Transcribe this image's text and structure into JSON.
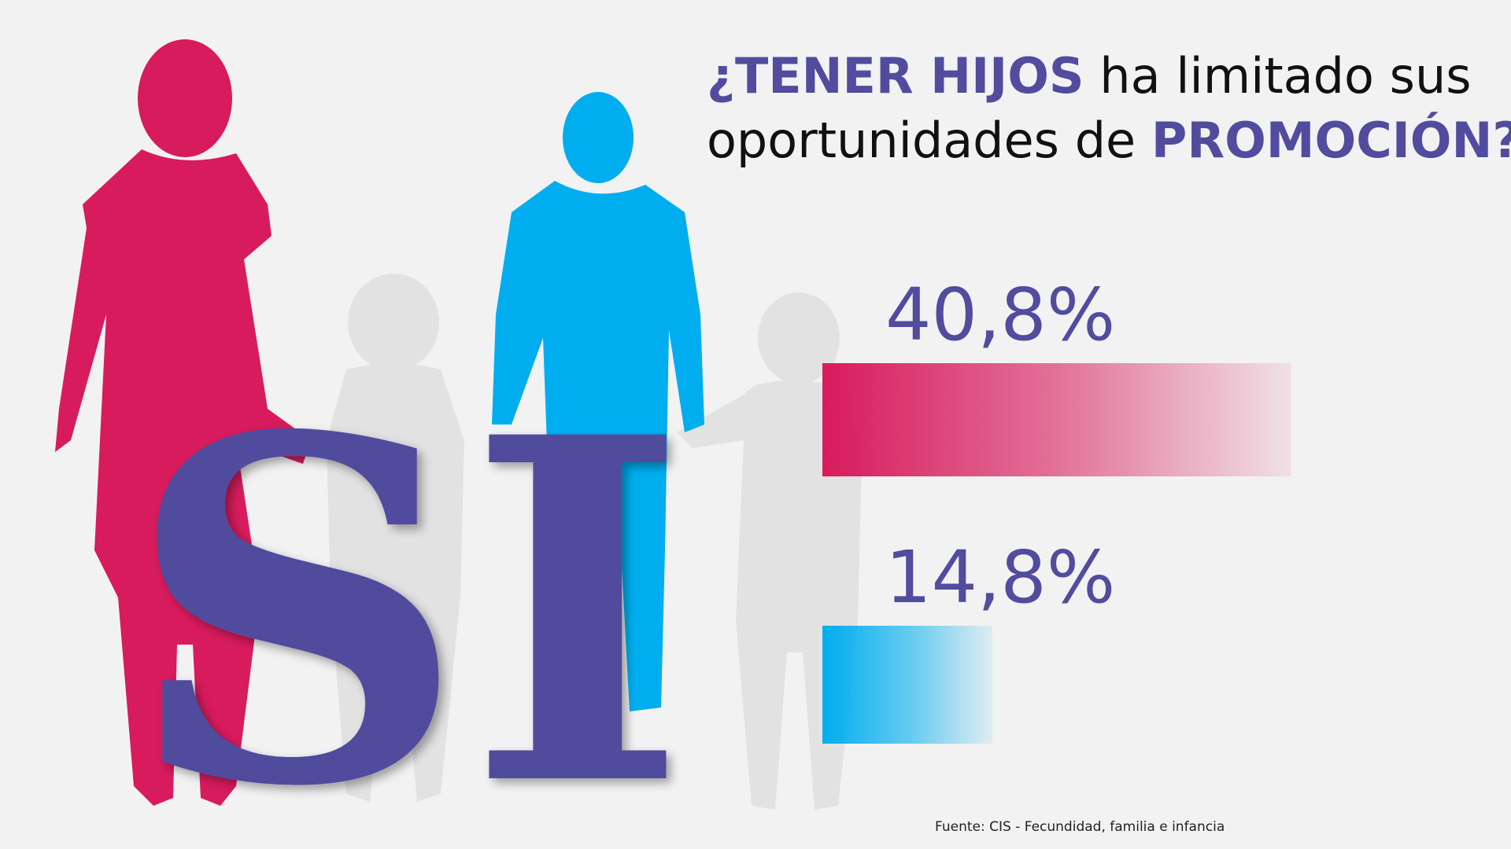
{
  "chart_data": {
    "type": "bar",
    "title": [
      "¿TENER HIJOS",
      "ha limitado sus",
      "oportunidades de",
      "PROMOCIÓN?"
    ],
    "annotation": "SI",
    "values": [
      40.8,
      14.8
    ],
    "value_labels": [
      "40,8%",
      "14,8%"
    ],
    "colors": [
      "#d81b5c",
      "#00aeef"
    ],
    "source": "Fuente: CIS - Fecundidad, familia e infancia"
  }
}
